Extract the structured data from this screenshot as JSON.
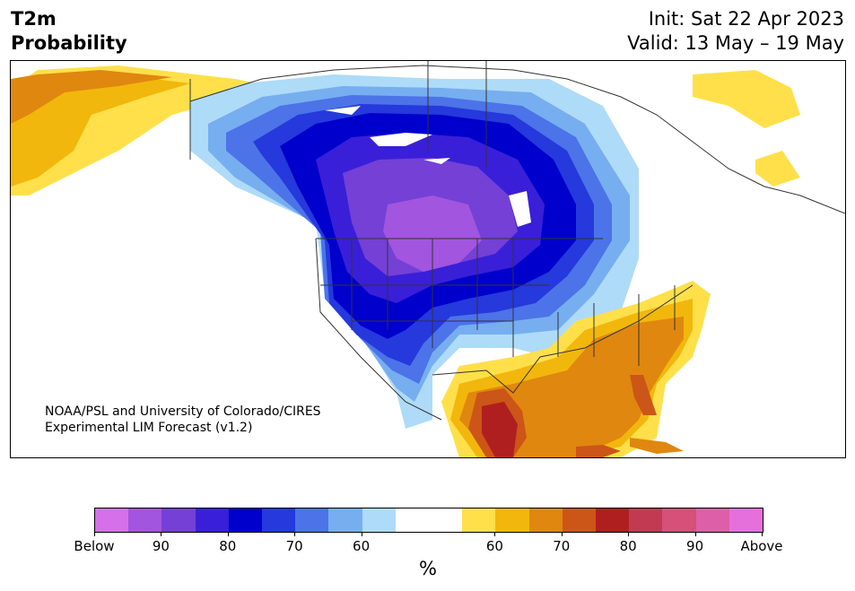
{
  "header": {
    "title_line1": "T2m",
    "title_line2": "Probability",
    "init": "Init: Sat 22 Apr 2023",
    "valid": "Valid: 13 May – 19 May"
  },
  "credit": {
    "line1": "NOAA/PSL and University of Colorado/CIRES",
    "line2": "Experimental LIM Forecast (v1.2)"
  },
  "colorbar": {
    "unit_label": "%",
    "colors": [
      "#d670e8",
      "#a255df",
      "#7440d6",
      "#3a1fd8",
      "#0000cc",
      "#2539dc",
      "#4c73e8",
      "#77aef0",
      "#aedbf7",
      "#ffffff",
      "#ffffff",
      "#ffe04a",
      "#f2b70c",
      "#e0870f",
      "#cc5518",
      "#b01f1f",
      "#c23a52",
      "#d65079",
      "#dd5fa7",
      "#e570dc"
    ],
    "tick_labels": [
      "Below",
      "90",
      "80",
      "70",
      "60",
      "60",
      "70",
      "80",
      "90",
      "Above"
    ]
  },
  "map": {
    "colors": {
      "land_bg": "#ffffff",
      "ocean": "#ffffff",
      "border": "#333333"
    }
  }
}
